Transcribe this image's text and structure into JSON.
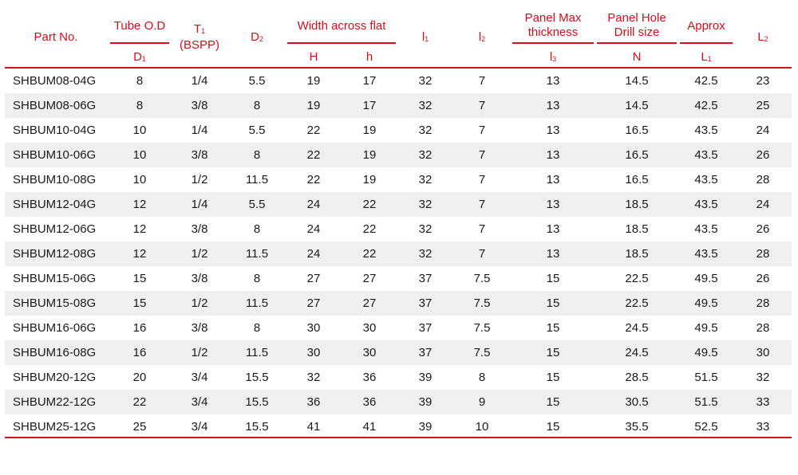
{
  "header": {
    "part_no": "Part No.",
    "tube_od": "Tube O.D",
    "tube_od_sym": "D",
    "tube_od_sub": "1",
    "t1_sym": "T",
    "t1_sub": "1",
    "t1_note": "(BSPP)",
    "d2_sym": "D",
    "d2_sub": "2",
    "width_across_flat": "Width across flat",
    "H": "H",
    "h": "h",
    "l1_sym": "l",
    "l1_sub": "1",
    "l2_sym": "l",
    "l2_sub": "2",
    "panel_max_line1": "Panel Max",
    "panel_max_line2": "thickness",
    "l3_sym": "l",
    "l3_sub": "3",
    "panel_hole_line1": "Panel Hole",
    "panel_hole_line2": "Drill size",
    "N": "N",
    "approx": "Approx",
    "L1_sym": "L",
    "L1_sub": "1",
    "L2_sym": "L",
    "L2_sub": "2"
  },
  "rows": [
    [
      "SHBUM08-04G",
      "8",
      "1/4",
      "5.5",
      "19",
      "17",
      "32",
      "7",
      "13",
      "14.5",
      "42.5",
      "23"
    ],
    [
      "SHBUM08-06G",
      "8",
      "3/8",
      "8",
      "19",
      "17",
      "32",
      "7",
      "13",
      "14.5",
      "42.5",
      "25"
    ],
    [
      "SHBUM10-04G",
      "10",
      "1/4",
      "5.5",
      "22",
      "19",
      "32",
      "7",
      "13",
      "16.5",
      "43.5",
      "24"
    ],
    [
      "SHBUM10-06G",
      "10",
      "3/8",
      "8",
      "22",
      "19",
      "32",
      "7",
      "13",
      "16.5",
      "43.5",
      "26"
    ],
    [
      "SHBUM10-08G",
      "10",
      "1/2",
      "11.5",
      "22",
      "19",
      "32",
      "7",
      "13",
      "16.5",
      "43.5",
      "28"
    ],
    [
      "SHBUM12-04G",
      "12",
      "1/4",
      "5.5",
      "24",
      "22",
      "32",
      "7",
      "13",
      "18.5",
      "43.5",
      "24"
    ],
    [
      "SHBUM12-06G",
      "12",
      "3/8",
      "8",
      "24",
      "22",
      "32",
      "7",
      "13",
      "18.5",
      "43.5",
      "26"
    ],
    [
      "SHBUM12-08G",
      "12",
      "1/2",
      "11.5",
      "24",
      "22",
      "32",
      "7",
      "13",
      "18.5",
      "43.5",
      "28"
    ],
    [
      "SHBUM15-06G",
      "15",
      "3/8",
      "8",
      "27",
      "27",
      "37",
      "7.5",
      "15",
      "22.5",
      "49.5",
      "26"
    ],
    [
      "SHBUM15-08G",
      "15",
      "1/2",
      "11.5",
      "27",
      "27",
      "37",
      "7.5",
      "15",
      "22.5",
      "49.5",
      "28"
    ],
    [
      "SHBUM16-06G",
      "16",
      "3/8",
      "8",
      "30",
      "30",
      "37",
      "7.5",
      "15",
      "24.5",
      "49.5",
      "28"
    ],
    [
      "SHBUM16-08G",
      "16",
      "1/2",
      "11.5",
      "30",
      "30",
      "37",
      "7.5",
      "15",
      "24.5",
      "49.5",
      "30"
    ],
    [
      "SHBUM20-12G",
      "20",
      "3/4",
      "15.5",
      "32",
      "36",
      "39",
      "8",
      "15",
      "28.5",
      "51.5",
      "32"
    ],
    [
      "SHBUM22-12G",
      "22",
      "3/4",
      "15.5",
      "36",
      "36",
      "39",
      "9",
      "15",
      "30.5",
      "51.5",
      "33"
    ],
    [
      "SHBUM25-12G",
      "25",
      "3/4",
      "15.5",
      "41",
      "41",
      "39",
      "10",
      "15",
      "35.5",
      "52.5",
      "33"
    ]
  ],
  "colors": {
    "accent": "#d0111b",
    "stripe": "#f0f0f0"
  }
}
